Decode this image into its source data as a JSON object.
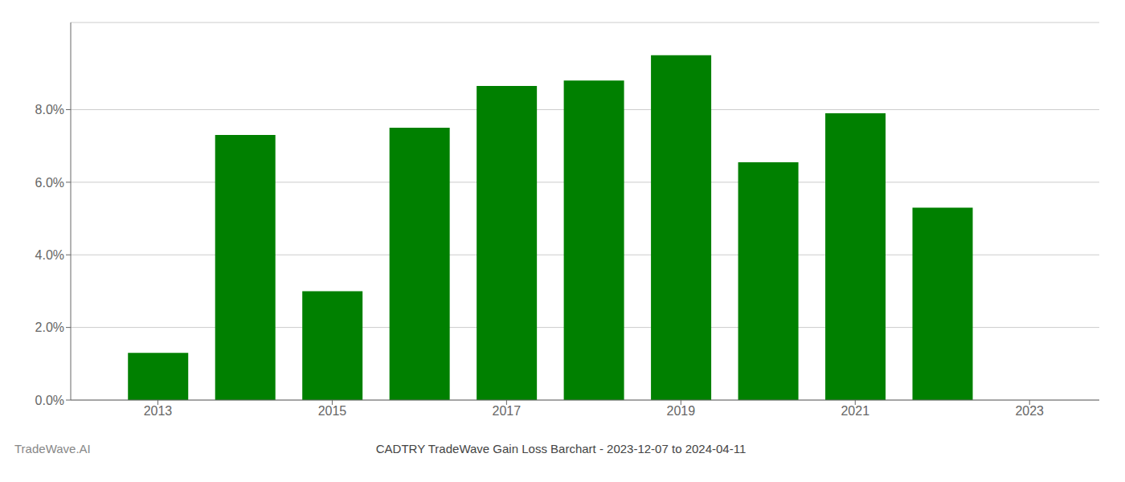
{
  "chart_data": {
    "type": "bar",
    "title": "CADTRY TradeWave Gain Loss Barchart - 2023-12-07 to 2024-04-11",
    "annotations": [
      "TradeWave.AI"
    ],
    "x": [
      2013,
      2014,
      2015,
      2016,
      2017,
      2018,
      2019,
      2020,
      2021,
      2022
    ],
    "values": [
      0.013,
      0.073,
      0.03,
      0.075,
      0.0865,
      0.088,
      0.095,
      0.0655,
      0.079,
      0.053
    ],
    "color": "#008000",
    "xlim": [
      2012.0,
      2023.8
    ],
    "xticks": [
      2013,
      2015,
      2017,
      2019,
      2021,
      2023
    ],
    "ylim": [
      0,
      0.104
    ],
    "yticks": [
      {
        "value": 0.0,
        "label": "0.0%"
      },
      {
        "value": 0.02,
        "label": "2.0%"
      },
      {
        "value": 0.04,
        "label": "4.0%"
      },
      {
        "value": 0.06,
        "label": "6.0%"
      },
      {
        "value": 0.08,
        "label": "8.0%"
      }
    ],
    "grid": true
  }
}
